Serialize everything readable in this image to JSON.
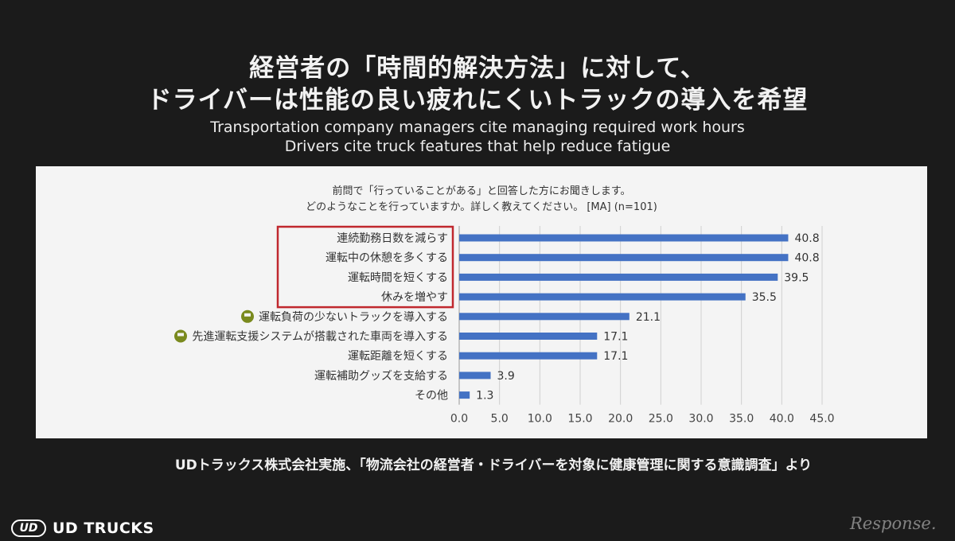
{
  "title_jp": [
    "経営者の「時間的解決方法」に対して、",
    "ドライバーは性能の良い疲れにくいトラックの導入を希望"
  ],
  "title_en": [
    "Transportation company managers cite managing required work hours",
    "Drivers cite truck features that help reduce fatigue"
  ],
  "source": "UDトラックス株式会社実施、「物流会社の経営者・ドライバーを対象に健康管理に関する意識調査」より",
  "brand": {
    "mark": "UD",
    "name": "UD TRUCKS"
  },
  "watermark": "Response.",
  "colors": {
    "bar": "#4472c4",
    "highlight_box": "#c0282e",
    "truck_icon": "#7a8a1e",
    "panel": "#f4f4f4",
    "background": "#1b1b1b"
  },
  "chart_data": {
    "type": "bar",
    "orientation": "horizontal",
    "question": [
      "前問で「行っていることがある」と回答した方にお聞きします。",
      "どのようなことを行っていますか。詳しく教えてください。 [MA] (n=101)"
    ],
    "categories": [
      "連続勤務日数を減らす",
      "運転中の休憩を多くする",
      "運転時間を短くする",
      "休みを増やす",
      "運転負荷の少ないトラックを導入する",
      "先進運転支援システムが搭載された車両を導入する",
      "運転距離を短くする",
      "運転補助グッズを支給する",
      "その他"
    ],
    "values": [
      40.8,
      40.8,
      39.5,
      35.5,
      21.1,
      17.1,
      17.1,
      3.9,
      1.3
    ],
    "value_labels": [
      "40.8",
      "40.8",
      "39.5",
      "35.5",
      "21.1",
      "17.1",
      "17.1",
      "3.9",
      "1.3"
    ],
    "xlim": [
      0,
      45
    ],
    "xticks": [
      "0.0",
      "5.0",
      "10.0",
      "15.0",
      "20.0",
      "25.0",
      "30.0",
      "35.0",
      "40.0",
      "45.0"
    ],
    "highlighted_categories": [
      0,
      1,
      2,
      3
    ],
    "truck_icon_categories": [
      4,
      5
    ],
    "grid": "vertical"
  }
}
